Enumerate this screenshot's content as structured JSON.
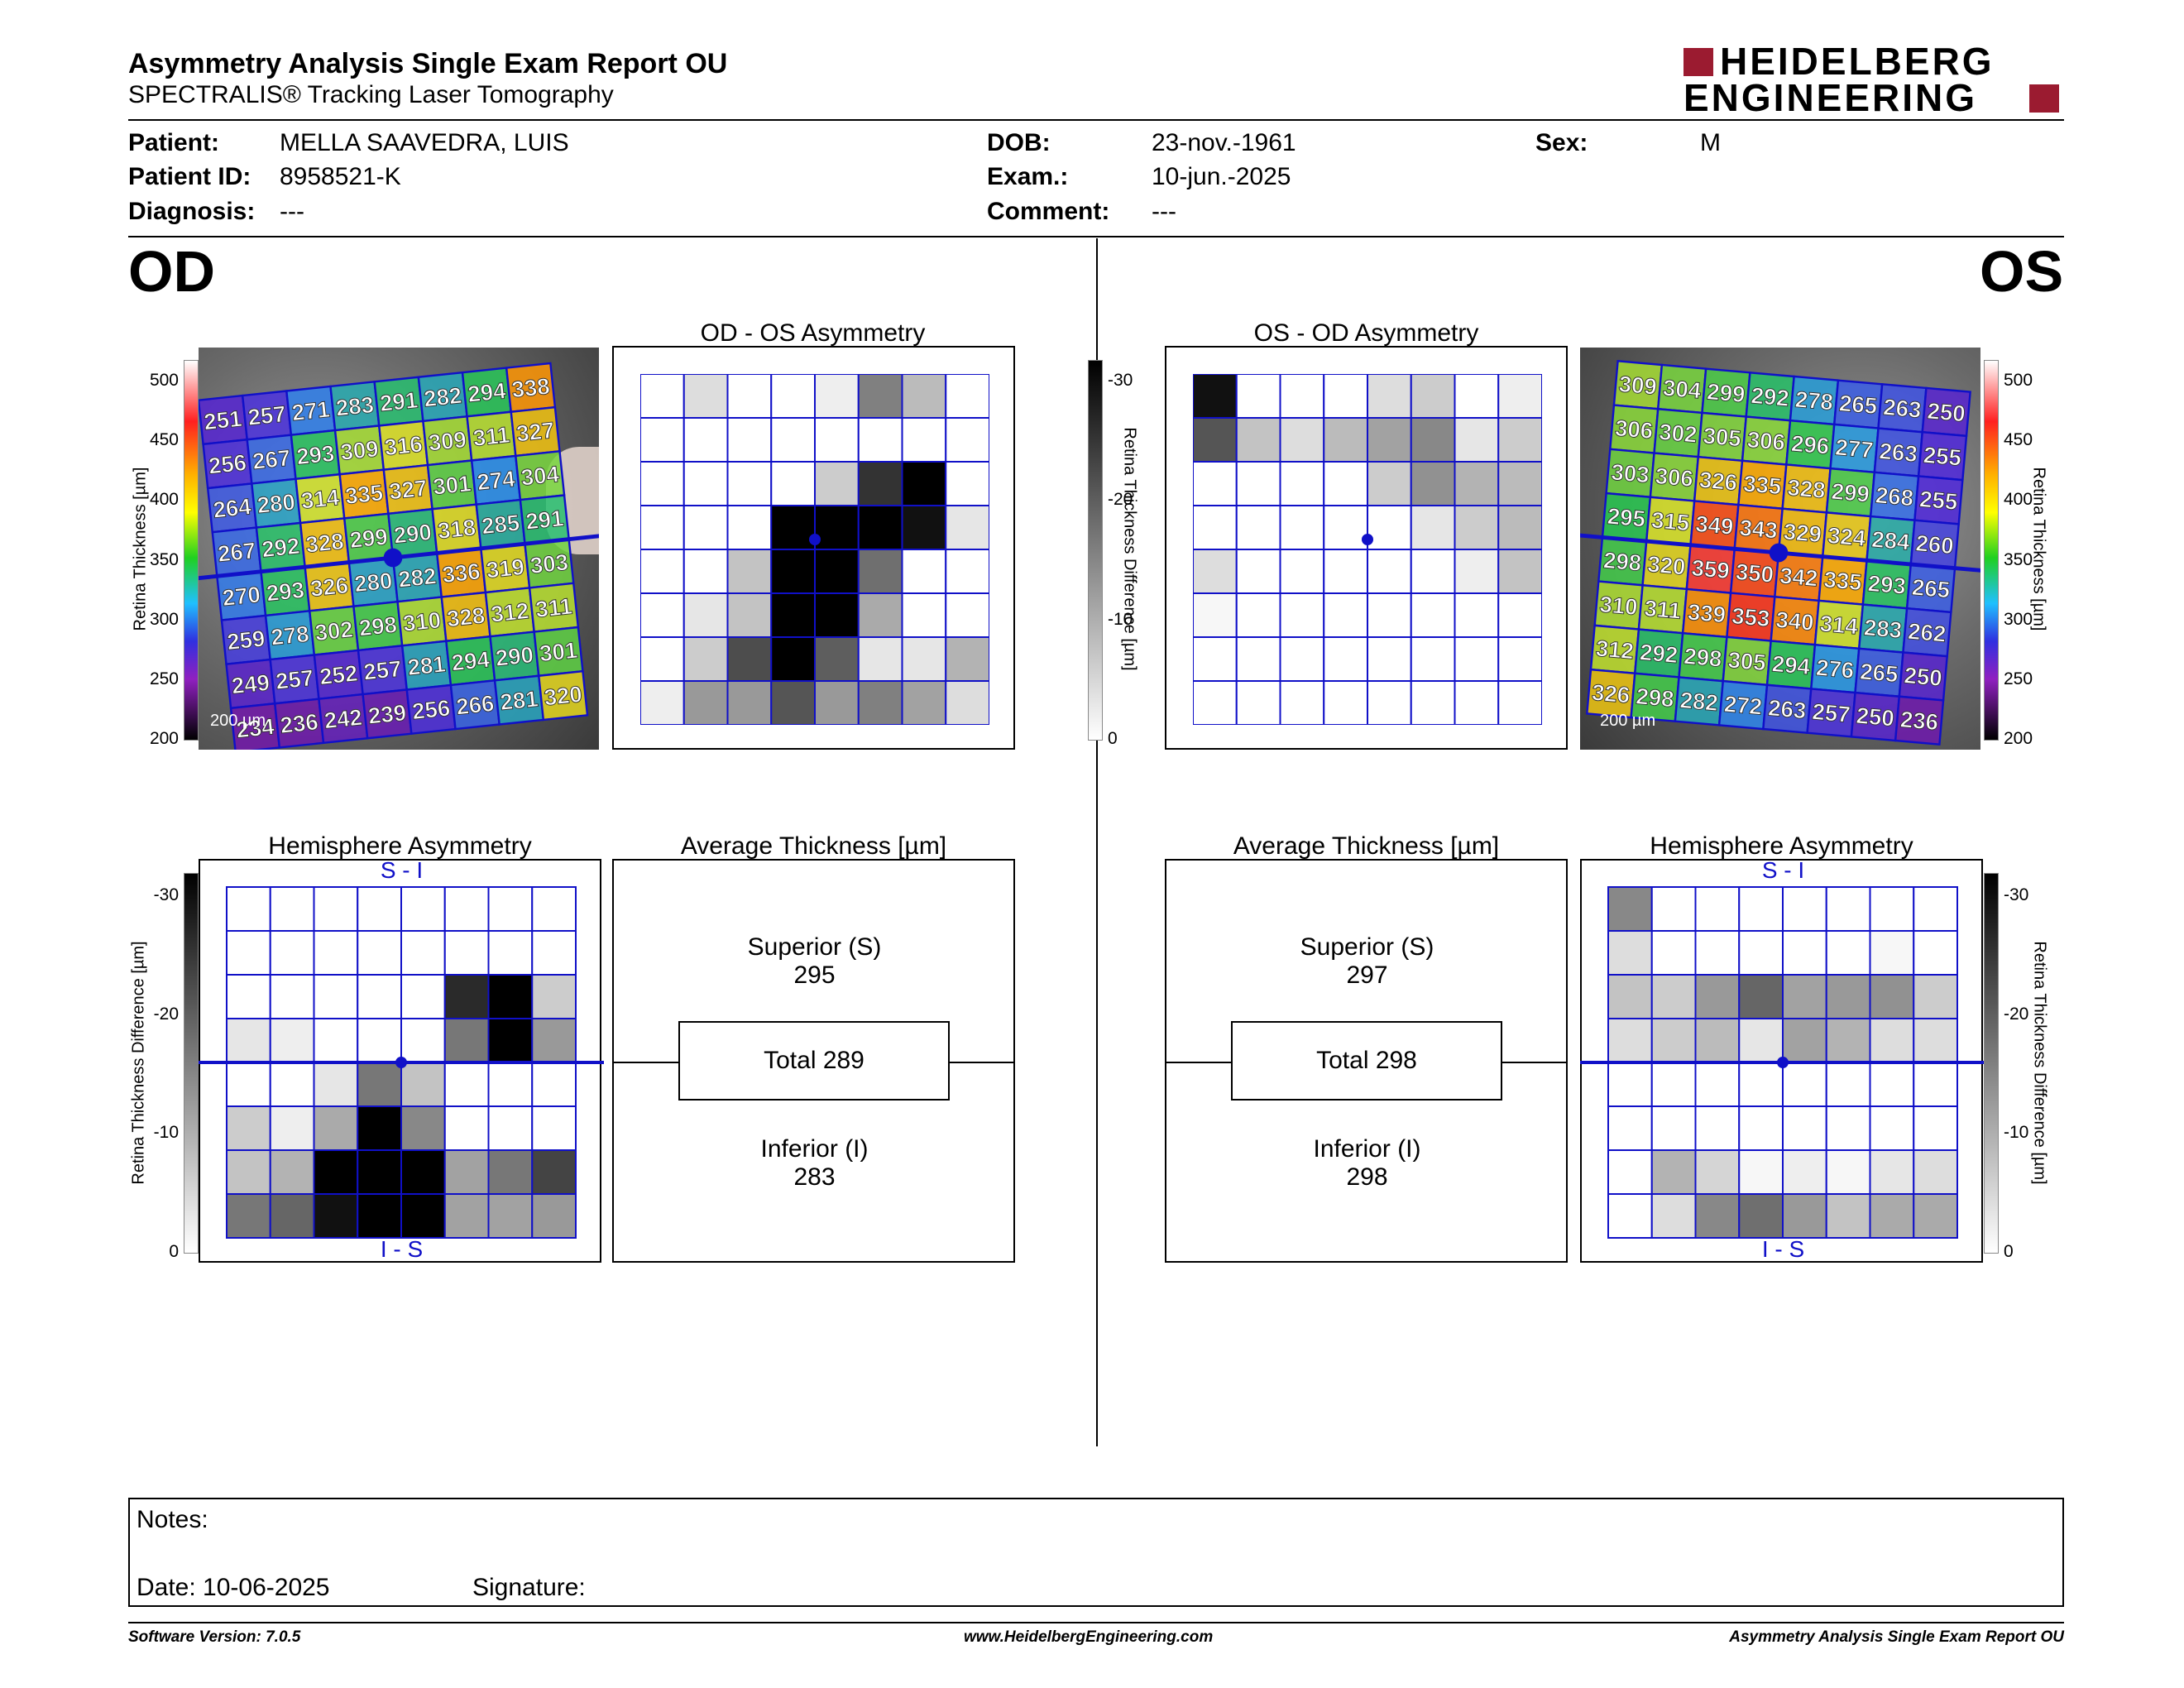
{
  "report": {
    "title": "Asymmetry Analysis Single Exam Report OU",
    "subtitle": "SPECTRALIS® Tracking Laser Tomography"
  },
  "logo": {
    "line1": "HEIDELBERG",
    "line2": "ENGINEERING",
    "accent": "#9b1b30"
  },
  "patient": {
    "labels": {
      "patient": "Patient:",
      "patient_id": "Patient ID:",
      "diagnosis": "Diagnosis:",
      "dob": "DOB:",
      "exam": "Exam.:",
      "comment": "Comment:",
      "sex": "Sex:"
    },
    "name": "MELLA SAAVEDRA, LUIS",
    "id": "8958521-K",
    "diagnosis": "---",
    "dob": "23-nov.-1961",
    "exam": "10-jun.-2025",
    "comment": "---",
    "sex": "M"
  },
  "eyes": {
    "left": "OD",
    "right": "OS"
  },
  "titles": {
    "od_os_asym": "OD - OS Asymmetry",
    "os_od_asym": "OS - OD Asymmetry",
    "hemi": "Hemisphere Asymmetry",
    "avg": "Average Thickness [µm]",
    "si": "S - I",
    "is": "I - S"
  },
  "scale_bar": "200 µm",
  "axes": {
    "thickness_label": "Retina Thickness [µm]",
    "thickness_ticks": [
      "500",
      "450",
      "400",
      "350",
      "300",
      "250",
      "200"
    ],
    "diff_label": "Retina Thickness Difference [µm]",
    "diff_ticks": [
      "-30",
      "-20",
      "-10",
      "0"
    ]
  },
  "thickness_grids": {
    "od": [
      [
        251,
        257,
        271,
        283,
        291,
        282,
        294,
        338
      ],
      [
        256,
        267,
        293,
        309,
        316,
        309,
        311,
        327
      ],
      [
        264,
        280,
        314,
        335,
        327,
        301,
        274,
        304
      ],
      [
        267,
        292,
        328,
        299,
        290,
        318,
        285,
        291
      ],
      [
        270,
        293,
        326,
        280,
        282,
        336,
        319,
        303
      ],
      [
        259,
        278,
        302,
        298,
        310,
        328,
        312,
        311
      ],
      [
        249,
        257,
        252,
        257,
        281,
        294,
        290,
        301
      ],
      [
        234,
        236,
        242,
        239,
        256,
        266,
        281,
        320
      ]
    ],
    "os": [
      [
        309,
        304,
        299,
        292,
        278,
        265,
        263,
        250
      ],
      [
        306,
        302,
        305,
        306,
        296,
        277,
        263,
        255
      ],
      [
        303,
        306,
        326,
        335,
        328,
        299,
        268,
        255
      ],
      [
        295,
        315,
        349,
        343,
        329,
        324,
        284,
        260
      ],
      [
        298,
        320,
        359,
        350,
        342,
        335,
        293,
        265
      ],
      [
        310,
        311,
        339,
        353,
        340,
        314,
        283,
        262
      ],
      [
        312,
        292,
        298,
        305,
        294,
        276,
        265,
        250
      ],
      [
        326,
        298,
        282,
        272,
        263,
        257,
        250,
        236
      ]
    ]
  },
  "asymmetry_grids": {
    "od_os": [
      [
        0,
        4,
        0,
        0,
        2,
        15,
        8,
        0
      ],
      [
        0,
        0,
        0,
        0,
        0,
        0,
        0,
        0
      ],
      [
        0,
        0,
        0,
        0,
        6,
        24,
        30,
        0
      ],
      [
        0,
        0,
        0,
        30,
        30,
        30,
        28,
        3
      ],
      [
        0,
        0,
        7,
        30,
        30,
        17,
        0,
        0
      ],
      [
        0,
        3,
        7,
        30,
        30,
        10,
        0,
        0
      ],
      [
        0,
        6,
        21,
        30,
        19,
        3,
        3,
        9
      ],
      [
        2,
        12,
        12,
        20,
        12,
        15,
        11,
        4
      ]
    ],
    "os_od": [
      [
        28,
        0,
        0,
        0,
        4,
        6,
        0,
        2
      ],
      [
        20,
        7,
        4,
        8,
        11,
        14,
        3,
        6
      ],
      [
        0,
        0,
        0,
        0,
        6,
        13,
        9,
        8
      ],
      [
        0,
        0,
        0,
        0,
        0,
        3,
        6,
        8
      ],
      [
        4,
        0,
        0,
        0,
        0,
        0,
        2,
        7
      ],
      [
        1,
        0,
        0,
        0,
        0,
        0,
        0,
        0
      ],
      [
        0,
        0,
        0,
        0,
        0,
        0,
        0,
        0
      ],
      [
        0,
        0,
        0,
        0,
        0,
        0,
        0,
        0
      ]
    ]
  },
  "hemisphere_grids": {
    "od": [
      [
        0,
        0,
        0,
        0,
        0,
        0,
        0,
        0
      ],
      [
        0,
        0,
        0,
        0,
        0,
        0,
        0,
        0
      ],
      [
        0,
        0,
        0,
        0,
        0,
        25,
        30,
        6
      ],
      [
        3,
        2,
        0,
        0,
        0,
        16,
        30,
        12
      ],
      [
        0,
        0,
        3,
        16,
        7,
        0,
        0,
        0
      ],
      [
        6,
        2,
        10,
        30,
        14,
        0,
        0,
        0
      ],
      [
        7,
        9,
        30,
        30,
        30,
        11,
        16,
        22
      ],
      [
        16,
        18,
        28,
        30,
        30,
        11,
        11,
        12
      ]
    ],
    "os": [
      [
        14,
        0,
        0,
        0,
        0,
        0,
        0,
        0
      ],
      [
        4,
        0,
        0,
        0,
        0,
        0,
        1,
        0
      ],
      [
        7,
        6,
        12,
        18,
        11,
        12,
        13,
        6
      ],
      [
        4,
        6,
        8,
        3,
        11,
        9,
        4,
        4
      ],
      [
        0,
        0,
        0,
        0,
        0,
        0,
        0,
        0
      ],
      [
        0,
        0,
        0,
        0,
        0,
        0,
        0,
        0
      ],
      [
        0,
        9,
        5,
        1,
        2,
        1,
        3,
        4
      ],
      [
        0,
        4,
        14,
        17,
        12,
        7,
        10,
        10
      ]
    ]
  },
  "average_thickness": {
    "od": {
      "superior_label": "Superior (S)",
      "superior": "295",
      "total_label": "Total 289",
      "inferior_label": "Inferior (I)",
      "inferior": "283"
    },
    "os": {
      "superior_label": "Superior (S)",
      "superior": "297",
      "total_label": "Total 298",
      "inferior_label": "Inferior (I)",
      "inferior": "298"
    }
  },
  "notes": {
    "label": "Notes:",
    "date": "Date: 10-06-2025",
    "signature": "Signature:"
  },
  "footer": {
    "software": "Software Version: 7.0.5",
    "website": "www.HeidelbergEngineering.com",
    "report": "Asymmetry Analysis Single Exam Report OU"
  },
  "colors": {
    "grid_line": "#1010c8",
    "text": "#000000"
  }
}
